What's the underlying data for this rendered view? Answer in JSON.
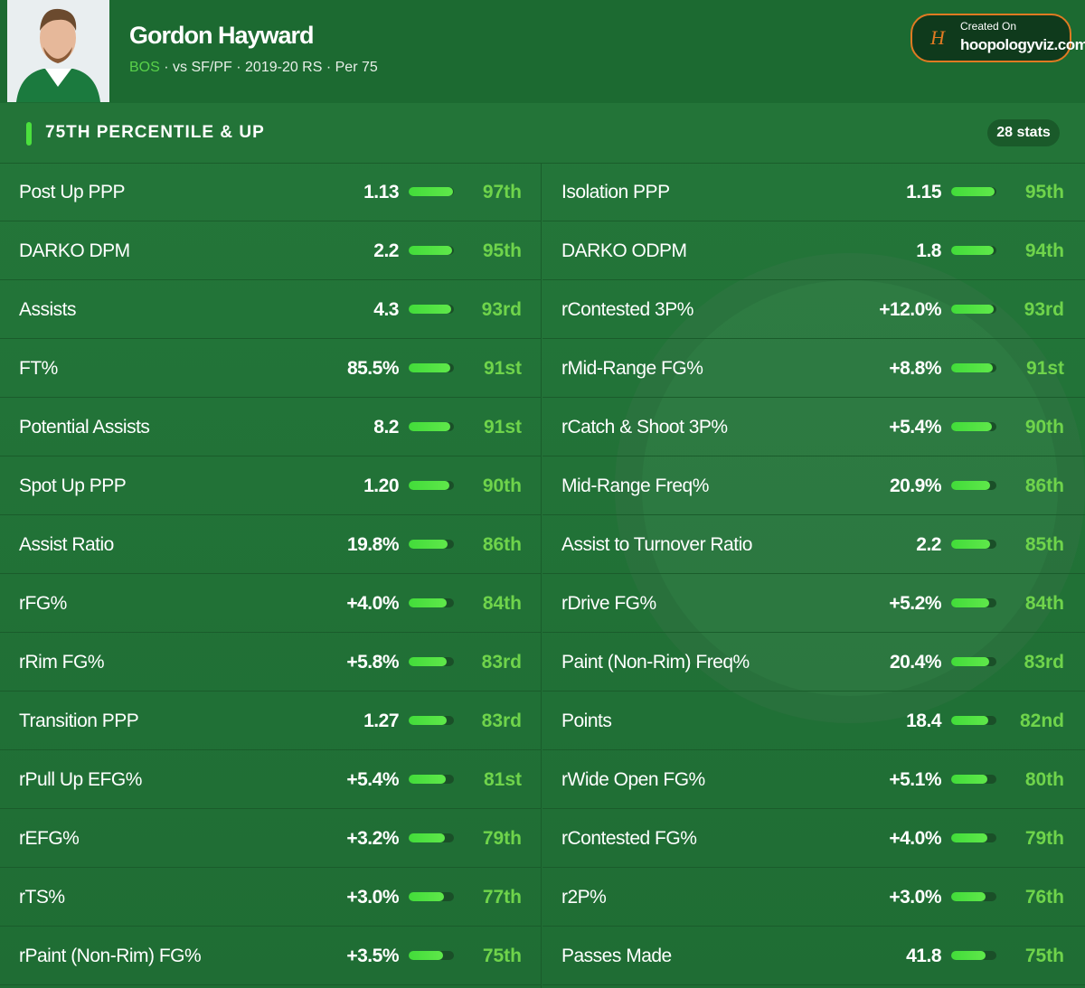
{
  "header": {
    "name": "Gordon Hayward",
    "team": "BOS",
    "matchup": "vs SF/PF",
    "season": "2019-20 RS",
    "pace": "Per 75",
    "badge_caption": "Created On",
    "badge_site": "hoopologyviz.com"
  },
  "section": {
    "title": "75TH PERCENTILE & UP",
    "count": "28 stats"
  },
  "stats": [
    {
      "label": "Post Up PPP",
      "value": "1.13",
      "percentile": {
        "value": 97,
        "label": "97th"
      }
    },
    {
      "label": "Isolation PPP",
      "value": "1.15",
      "percentile": {
        "value": 95,
        "label": "95th"
      }
    },
    {
      "label": "DARKO DPM",
      "value": "2.2",
      "percentile": {
        "value": 95,
        "label": "95th"
      }
    },
    {
      "label": "DARKO ODPM",
      "value": "1.8",
      "percentile": {
        "value": 94,
        "label": "94th"
      }
    },
    {
      "label": "Assists",
      "value": "4.3",
      "percentile": {
        "value": 93,
        "label": "93rd"
      }
    },
    {
      "label": "rContested 3P%",
      "value": "+12.0%",
      "percentile": {
        "value": 93,
        "label": "93rd"
      }
    },
    {
      "label": "FT%",
      "value": "85.5%",
      "percentile": {
        "value": 91,
        "label": "91st"
      }
    },
    {
      "label": "rMid-Range FG%",
      "value": "+8.8%",
      "percentile": {
        "value": 91,
        "label": "91st"
      }
    },
    {
      "label": "Potential Assists",
      "value": "8.2",
      "percentile": {
        "value": 91,
        "label": "91st"
      }
    },
    {
      "label": "rCatch & Shoot 3P%",
      "value": "+5.4%",
      "percentile": {
        "value": 90,
        "label": "90th"
      }
    },
    {
      "label": "Spot Up PPP",
      "value": "1.20",
      "percentile": {
        "value": 90,
        "label": "90th"
      }
    },
    {
      "label": "Mid-Range Freq%",
      "value": "20.9%",
      "percentile": {
        "value": 86,
        "label": "86th"
      }
    },
    {
      "label": "Assist Ratio",
      "value": "19.8%",
      "percentile": {
        "value": 86,
        "label": "86th"
      }
    },
    {
      "label": "Assist to Turnover Ratio",
      "value": "2.2",
      "percentile": {
        "value": 85,
        "label": "85th"
      }
    },
    {
      "label": "rFG%",
      "value": "+4.0%",
      "percentile": {
        "value": 84,
        "label": "84th"
      }
    },
    {
      "label": "rDrive FG%",
      "value": "+5.2%",
      "percentile": {
        "value": 84,
        "label": "84th"
      }
    },
    {
      "label": "rRim FG%",
      "value": "+5.8%",
      "percentile": {
        "value": 83,
        "label": "83rd"
      }
    },
    {
      "label": "Paint (Non-Rim) Freq%",
      "value": "20.4%",
      "percentile": {
        "value": 83,
        "label": "83rd"
      }
    },
    {
      "label": "Transition PPP",
      "value": "1.27",
      "percentile": {
        "value": 83,
        "label": "83rd"
      }
    },
    {
      "label": "Points",
      "value": "18.4",
      "percentile": {
        "value": 82,
        "label": "82nd"
      }
    },
    {
      "label": "rPull Up EFG%",
      "value": "+5.4%",
      "percentile": {
        "value": 81,
        "label": "81st"
      }
    },
    {
      "label": "rWide Open FG%",
      "value": "+5.1%",
      "percentile": {
        "value": 80,
        "label": "80th"
      }
    },
    {
      "label": "rEFG%",
      "value": "+3.2%",
      "percentile": {
        "value": 79,
        "label": "79th"
      }
    },
    {
      "label": "rContested FG%",
      "value": "+4.0%",
      "percentile": {
        "value": 79,
        "label": "79th"
      }
    },
    {
      "label": "rTS%",
      "value": "+3.0%",
      "percentile": {
        "value": 77,
        "label": "77th"
      }
    },
    {
      "label": "r2P%",
      "value": "+3.0%",
      "percentile": {
        "value": 76,
        "label": "76th"
      }
    },
    {
      "label": "rPaint (Non-Rim) FG%",
      "value": "+3.5%",
      "percentile": {
        "value": 75,
        "label": "75th"
      }
    },
    {
      "label": "Passes Made",
      "value": "41.8",
      "percentile": {
        "value": 75,
        "label": "75th"
      }
    }
  ]
}
